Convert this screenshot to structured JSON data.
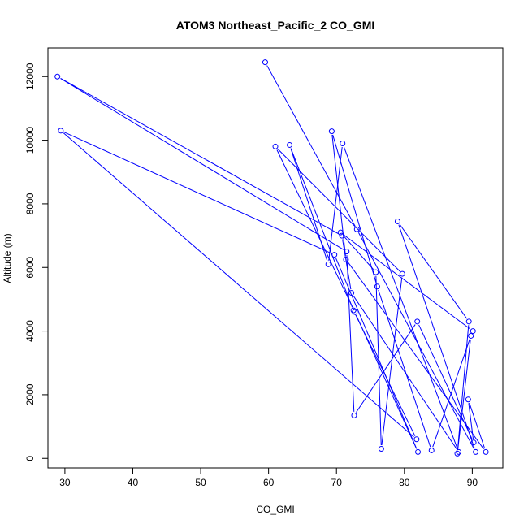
{
  "chart_data": {
    "type": "line",
    "title": "ATOM3 Northeast_Pacific_2 CO_GMI",
    "xlabel": "CO_GMI",
    "ylabel": "Altitude (m)",
    "xlim": [
      27.5,
      94.5
    ],
    "ylim": [
      -300,
      12900
    ],
    "x_ticks": [
      30,
      40,
      50,
      60,
      70,
      80,
      90
    ],
    "y_ticks": [
      0,
      2000,
      4000,
      6000,
      8000,
      10000,
      12000
    ],
    "x_tick_labels": [
      "30",
      "40",
      "50",
      "60",
      "70",
      "80",
      "90"
    ],
    "y_tick_labels": [
      "0",
      "2000",
      "4000",
      "6000",
      "8000",
      "10000",
      "12000"
    ],
    "grid": false,
    "series": [
      {
        "color": "#0000ff",
        "marker": "open-circle",
        "x": [
          59.5,
          73.0,
          90.5,
          79.0,
          89.5,
          87.8,
          89.8,
          84.0,
          76.0,
          69.3,
          71.4,
          92.0,
          89.4,
          90.2,
          81.9,
          72.6,
          71.5,
          28.9,
          70.8,
          72.2,
          88.0,
          70.9,
          68.8,
          63.1,
          72.5,
          81.8,
          29.4,
          69.7,
          82.0,
          72.7,
          61.0,
          79.7,
          76.6,
          75.8,
          70.6,
          90.1
        ],
        "y": [
          12450,
          7200,
          200,
          7450,
          4300,
          150,
          3850,
          250,
          5400,
          10280,
          6250,
          200,
          1850,
          500,
          4300,
          1350,
          6500,
          12000,
          7000,
          5200,
          200,
          9900,
          6100,
          9850,
          4650,
          600,
          10300,
          6400,
          200,
          4600,
          9800,
          5800,
          300,
          5850,
          7100,
          4000
        ]
      }
    ]
  }
}
